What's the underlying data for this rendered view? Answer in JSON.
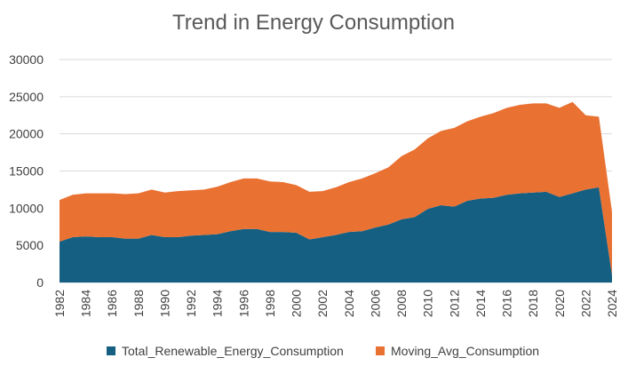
{
  "chart_data": {
    "type": "area",
    "title": "Trend in Energy Consumption",
    "stacked": true,
    "ylim": [
      0,
      30000
    ],
    "yticks": [
      0,
      5000,
      10000,
      15000,
      20000,
      25000,
      30000
    ],
    "ytick_labels": [
      "0",
      "5000",
      "10000",
      "15000",
      "20000",
      "25000",
      "30000"
    ],
    "x": [
      1982,
      1983,
      1984,
      1985,
      1986,
      1987,
      1988,
      1989,
      1990,
      1991,
      1992,
      1993,
      1994,
      1995,
      1996,
      1997,
      1998,
      1999,
      2000,
      2001,
      2002,
      2003,
      2004,
      2005,
      2006,
      2007,
      2008,
      2009,
      2010,
      2011,
      2012,
      2013,
      2014,
      2015,
      2016,
      2017,
      2018,
      2019,
      2020,
      2021,
      2022,
      2023,
      2024
    ],
    "xtick_labels": [
      "1982",
      "1984",
      "1986",
      "1988",
      "1990",
      "1992",
      "1994",
      "1996",
      "1998",
      "2000",
      "2002",
      "2004",
      "2006",
      "2008",
      "2010",
      "2012",
      "2014",
      "2016",
      "2018",
      "2020",
      "2022",
      "2024"
    ],
    "grid": true,
    "legend_position": "bottom",
    "series": [
      {
        "name": "Total_Renewable_Energy_Consumption",
        "color": "#156082",
        "values": [
          5500,
          6100,
          6200,
          6100,
          6100,
          5900,
          5900,
          6400,
          6100,
          6100,
          6300,
          6400,
          6500,
          6900,
          7200,
          7200,
          6800,
          6800,
          6700,
          5800,
          6100,
          6400,
          6800,
          6900,
          7400,
          7800,
          8500,
          8800,
          9900,
          10400,
          10200,
          11000,
          11300,
          11400,
          11800,
          12000,
          12100,
          12200,
          11500,
          12000,
          12500,
          12800,
          1000
        ]
      },
      {
        "name": "Moving_Avg_Consumption",
        "color": "#E97132",
        "values": [
          5600,
          5700,
          5800,
          5900,
          5900,
          6000,
          6100,
          6100,
          6000,
          6200,
          6100,
          6100,
          6400,
          6600,
          6800,
          6800,
          6800,
          6700,
          6400,
          6400,
          6200,
          6400,
          6700,
          7100,
          7300,
          7700,
          8500,
          9100,
          9500,
          10000,
          10600,
          10700,
          11000,
          11400,
          11700,
          11900,
          12000,
          11900,
          12000,
          12300,
          10000,
          9500,
          8500
        ]
      }
    ]
  }
}
